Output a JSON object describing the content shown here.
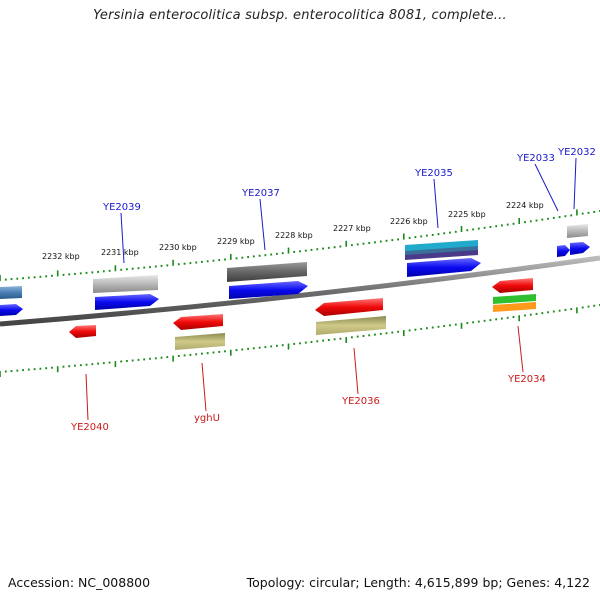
{
  "title": "Yersinia enterocolitica subsp. enterocolitica 8081, complete...",
  "footer": {
    "accession": "Accession: NC_008800",
    "summary": "Topology: circular; Length: 4,615,899 bp; Genes: 4,122"
  },
  "ruler_labels": [
    "2232 kbp",
    "2231 kbp",
    "2230 kbp",
    "2229 kbp",
    "2228 kbp",
    "2227 kbp",
    "2226 kbp",
    "2225 kbp",
    "2224 kbp"
  ],
  "genes": {
    "YE2032": "YE2032",
    "YE2033": "YE2033",
    "YE2034": "YE2034",
    "YE2035": "YE2035",
    "YE2036": "YE2036",
    "YE2037": "YE2037",
    "YE2039": "YE2039",
    "YE2040": "YE2040",
    "yghU": "yghU"
  },
  "colors": {
    "forward_cds": "#1010ee",
    "reverse_cds": "#ee1010",
    "backbone": "#777777",
    "ticks": "#1a8a1a",
    "forward_label": "#1a1acc",
    "reverse_label": "#cc1a1a"
  }
}
